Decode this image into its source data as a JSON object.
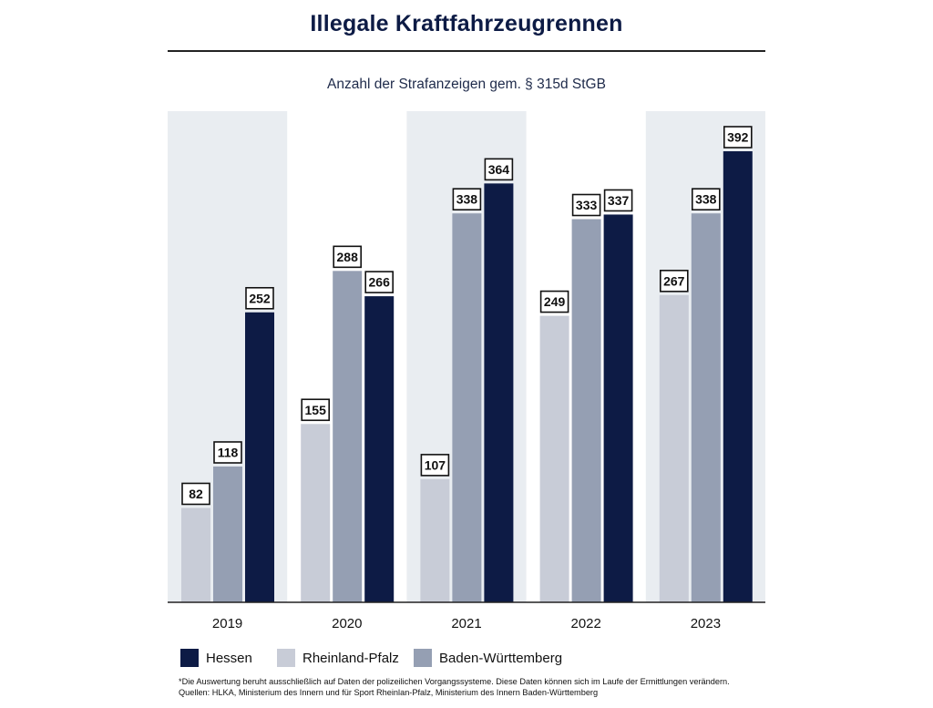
{
  "chart_data": {
    "type": "bar",
    "title": "Illegale Kraftfahrzeugrennen",
    "subtitle": "Anzahl der Strafanzeigen gem. § 315d StGB",
    "categories": [
      "2019",
      "2020",
      "2021",
      "2022",
      "2023"
    ],
    "series": [
      {
        "name": "Rheinland-Pfalz",
        "color": "#c8ccd7",
        "values": [
          82,
          155,
          107,
          249,
          267
        ]
      },
      {
        "name": "Baden-Württemberg",
        "color": "#959fb3",
        "values": [
          118,
          288,
          338,
          333,
          338
        ]
      },
      {
        "name": "Hessen",
        "color": "#0d1b45",
        "values": [
          252,
          266,
          364,
          337,
          392
        ]
      }
    ],
    "ylim": [
      0,
      420
    ],
    "grid": false,
    "legend_position": "bottom-left",
    "legend_order": [
      "Hessen",
      "Rheinland-Pfalz",
      "Baden-Württemberg"
    ],
    "background_band_color": "#e9edf1"
  },
  "footnote": {
    "line1": "*Die Auswertung beruht ausschließlich auf Daten der polizeilichen Vorgangssysteme. Diese Daten können sich im Laufe der Ermittlungen verändern.",
    "line2": "Quellen: HLKA, Ministerium des Innern und für Sport Rheinlan-Pfalz, Ministerium des Innern Baden-Württemberg"
  }
}
